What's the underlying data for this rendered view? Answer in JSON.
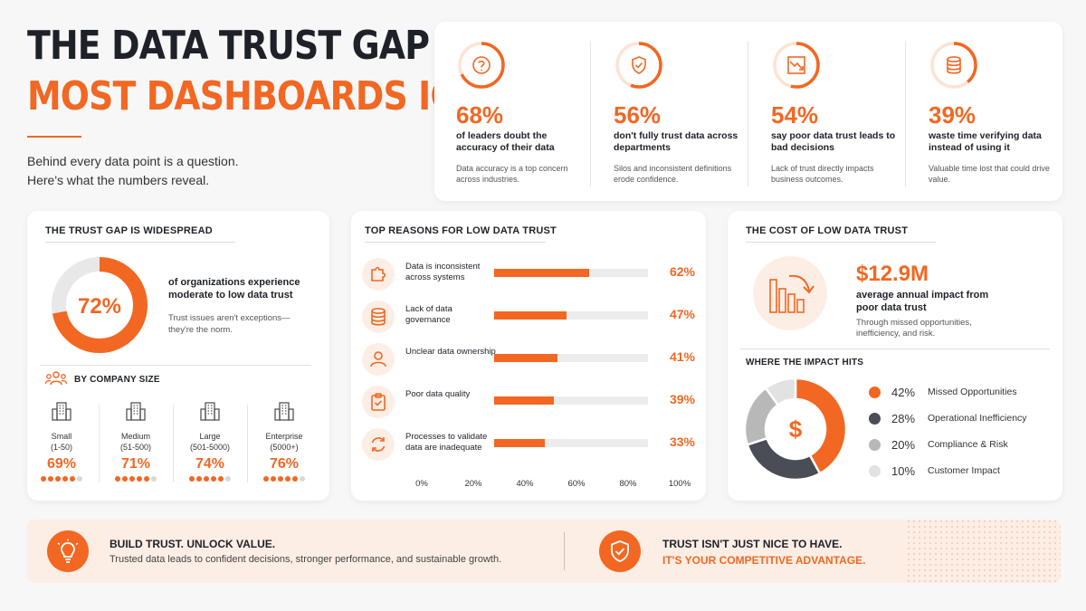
{
  "header": {
    "title_line1": "THE DATA TRUST GAP",
    "title_line2": "MOST DASHBOARDS IGNORE",
    "subtitle_line1": "Behind every data point is a question.",
    "subtitle_line2": "Here's what the numbers reveal."
  },
  "stats": [
    {
      "icon": "question-icon",
      "value": "68%",
      "fraction": 0.68,
      "label": "of leaders doubt the accuracy of their data",
      "desc": "Data accuracy is a top concern across industries."
    },
    {
      "icon": "shield-check-icon",
      "value": "56%",
      "fraction": 0.56,
      "label": "don't fully trust data across departments",
      "desc": "Silos and inconsistent definitions erode confidence."
    },
    {
      "icon": "trend-down-icon",
      "value": "54%",
      "fraction": 0.54,
      "label": "say poor data trust leads to bad decisions",
      "desc": "Lack of trust directly impacts business outcomes."
    },
    {
      "icon": "database-icon",
      "value": "39%",
      "fraction": 0.39,
      "label": "waste time verifying data instead of using it",
      "desc": "Valuable time lost that could drive value."
    }
  ],
  "widespread": {
    "title": "THE TRUST GAP IS WIDESPREAD",
    "value": "72%",
    "fraction": 0.72,
    "label": "of organizations experience moderate to low data trust",
    "note": "Trust issues aren't exceptions—they're the norm.",
    "by_size_title": "BY COMPANY SIZE",
    "sizes": [
      {
        "name": "Small",
        "range": "(1-50)",
        "value": "69%",
        "dots_on": 5
      },
      {
        "name": "Medium",
        "range": "(51-500)",
        "value": "71%",
        "dots_on": 5
      },
      {
        "name": "Large",
        "range": "(501-5000)",
        "value": "74%",
        "dots_on": 5
      },
      {
        "name": "Enterprise",
        "range": "(5000+)",
        "value": "76%",
        "dots_on": 5
      }
    ]
  },
  "reasons": {
    "title": "TOP REASONS FOR LOW DATA TRUST",
    "items": [
      {
        "icon": "puzzle-icon",
        "label": "Data is inconsistent across systems",
        "value": 62,
        "display": "62%"
      },
      {
        "icon": "database-icon",
        "label": "Lack of data governance",
        "value": 47,
        "display": "47%"
      },
      {
        "icon": "user-icon",
        "label": "Unclear data ownership",
        "value": 41,
        "display": "41%"
      },
      {
        "icon": "clipboard-icon",
        "label": "Poor data quality",
        "value": 39,
        "display": "39%"
      },
      {
        "icon": "refresh-icon",
        "label": "Processes to validate data are inadequate",
        "value": 33,
        "display": "33%"
      }
    ],
    "ticks": [
      "0%",
      "20%",
      "40%",
      "60%",
      "80%",
      "100%"
    ]
  },
  "cost": {
    "title": "THE COST OF LOW DATA TRUST",
    "value": "$12.9M",
    "label": "average annual impact from poor data trust",
    "note": "Through missed opportunities, inefficiency, and risk.",
    "impact_title": "WHERE THE IMPACT HITS",
    "center_symbol": "$"
  },
  "chart_data": {
    "type": "pie",
    "title": "WHERE THE IMPACT HITS",
    "categories": [
      "Missed Opportunities",
      "Operational Inefficiency",
      "Compliance & Risk",
      "Customer Impact"
    ],
    "values": [
      42,
      28,
      20,
      10
    ],
    "display": [
      "42%",
      "28%",
      "20%",
      "10%"
    ],
    "colors": [
      "#f26722",
      "#4a4d55",
      "#b8b8b8",
      "#e2e2e2"
    ]
  },
  "banner": {
    "left_title": "BUILD TRUST. UNLOCK VALUE.",
    "left_text": "Trusted data leads to confident decisions, stronger performance, and sustainable growth.",
    "right_title": "TRUST ISN'T JUST NICE TO HAVE.",
    "right_text": "IT'S YOUR COMPETITIVE ADVANTAGE."
  },
  "colors": {
    "accent": "#f26722",
    "dark": "#1f2128",
    "accent_light": "#fdeee5"
  }
}
